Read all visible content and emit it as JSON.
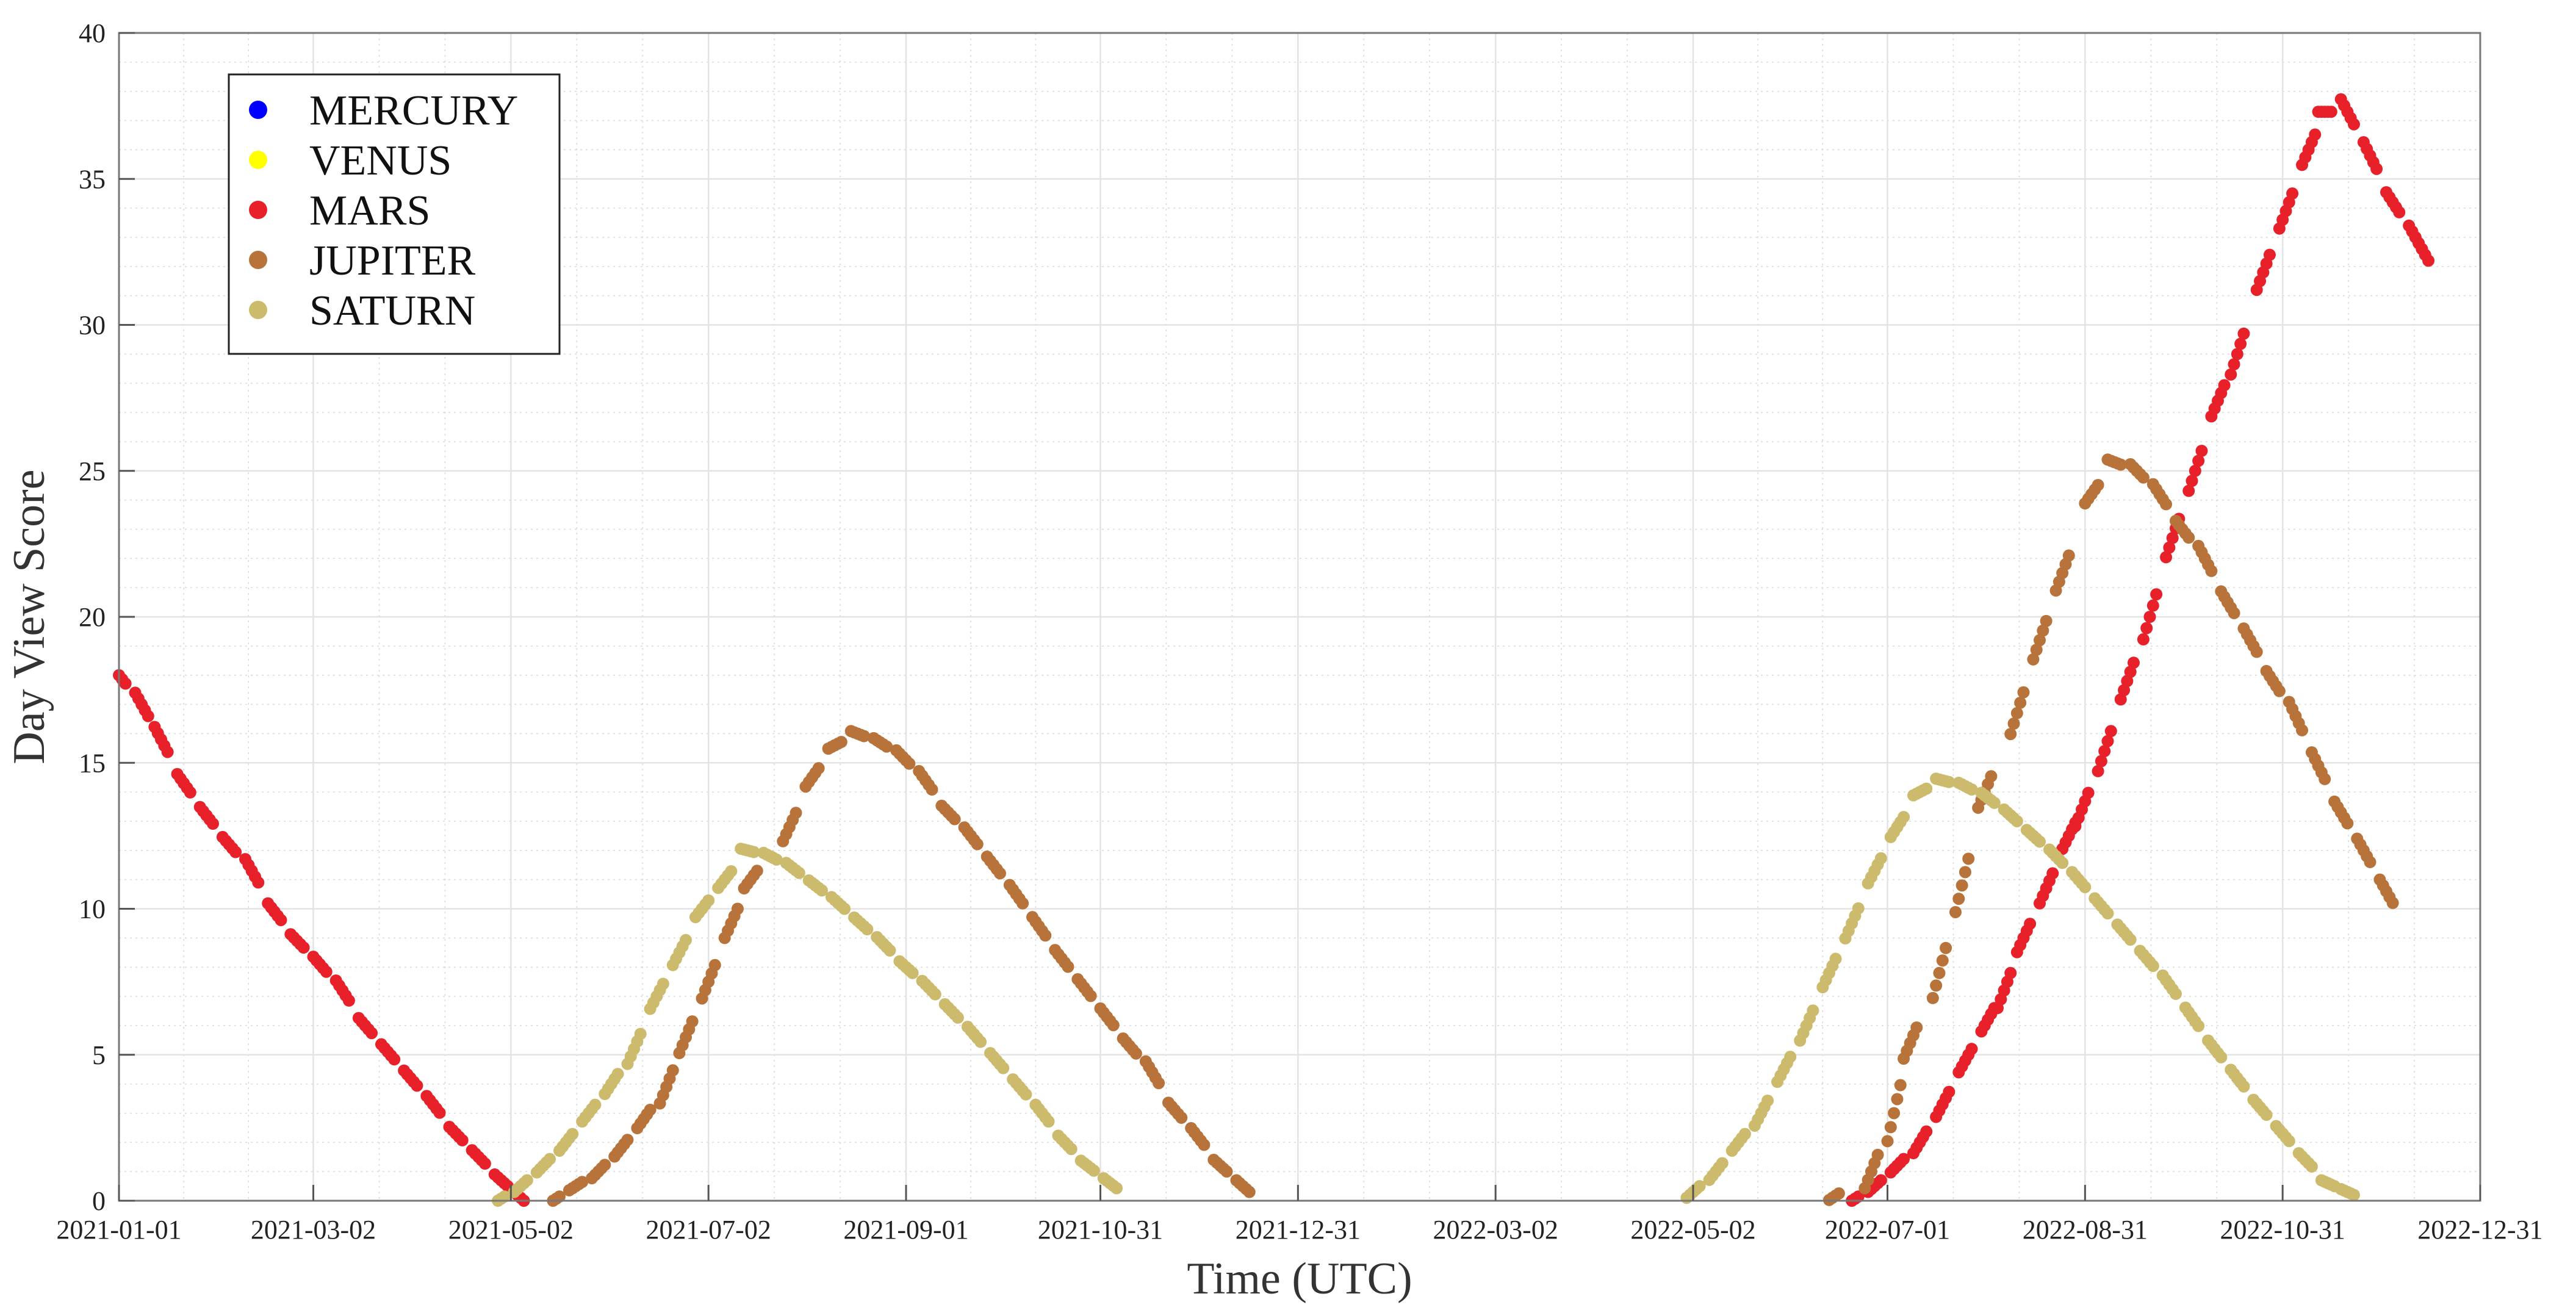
{
  "chart_data": {
    "type": "scatter",
    "title": "",
    "xlabel": "Time (UTC)",
    "ylabel": "Day View Score",
    "x_type": "date",
    "xlim": [
      "2021-01-01",
      "2022-12-31"
    ],
    "ylim": [
      0,
      40
    ],
    "x_ticks": [
      "2021-01-01",
      "2021-03-02",
      "2021-05-02",
      "2021-07-02",
      "2021-09-01",
      "2021-10-31",
      "2021-12-31",
      "2022-03-02",
      "2022-05-02",
      "2022-07-01",
      "2022-08-31",
      "2022-10-31",
      "2022-12-31"
    ],
    "y_ticks": [
      0,
      5,
      10,
      15,
      20,
      25,
      30,
      35,
      40
    ],
    "grid": true,
    "minor_grid": true,
    "legend_position": "top-left",
    "series": [
      {
        "name": "MERCURY",
        "color": "#0000ff",
        "points": []
      },
      {
        "name": "VENUS",
        "color": "#ffff00",
        "points": []
      },
      {
        "name": "MARS",
        "color": "#e8202a",
        "points": [
          [
            "2021-01-01",
            18.0
          ],
          [
            "2021-01-08",
            17.0
          ],
          [
            "2021-01-14",
            15.8
          ],
          [
            "2021-01-21",
            14.3
          ],
          [
            "2021-01-28",
            13.2
          ],
          [
            "2021-02-04",
            12.2
          ],
          [
            "2021-02-11",
            11.3
          ],
          [
            "2021-02-18",
            9.9
          ],
          [
            "2021-02-25",
            8.9
          ],
          [
            "2021-03-04",
            8.1
          ],
          [
            "2021-03-11",
            7.2
          ],
          [
            "2021-03-18",
            6.0
          ],
          [
            "2021-03-25",
            5.1
          ],
          [
            "2021-04-01",
            4.2
          ],
          [
            "2021-04-08",
            3.3
          ],
          [
            "2021-04-15",
            2.3
          ],
          [
            "2021-04-22",
            1.5
          ],
          [
            "2021-04-29",
            0.7
          ],
          [
            "2021-05-05",
            0.1
          ],
          [
            "2022-06-20",
            0.0
          ],
          [
            "2022-06-27",
            0.5
          ],
          [
            "2022-07-04",
            1.2
          ],
          [
            "2022-07-11",
            2.0
          ],
          [
            "2022-07-18",
            3.3
          ],
          [
            "2022-07-25",
            4.8
          ],
          [
            "2022-08-01",
            6.2
          ],
          [
            "2022-08-06",
            7.2
          ],
          [
            "2022-08-12",
            9.0
          ],
          [
            "2022-08-19",
            10.7
          ],
          [
            "2022-08-26",
            12.5
          ],
          [
            "2022-08-30",
            13.4
          ],
          [
            "2022-09-06",
            15.4
          ],
          [
            "2022-09-13",
            17.8
          ],
          [
            "2022-09-20",
            20.0
          ],
          [
            "2022-09-27",
            22.7
          ],
          [
            "2022-10-04",
            25.0
          ],
          [
            "2022-10-11",
            27.4
          ],
          [
            "2022-10-17",
            29.0
          ],
          [
            "2022-10-25",
            31.8
          ],
          [
            "2022-11-01",
            33.9
          ],
          [
            "2022-11-08",
            36.0
          ],
          [
            "2022-11-13",
            37.3
          ],
          [
            "2022-11-20",
            37.3
          ],
          [
            "2022-11-27",
            35.8
          ],
          [
            "2022-12-04",
            34.2
          ],
          [
            "2022-12-11",
            33.0
          ],
          [
            "2022-12-13",
            32.6
          ]
        ]
      },
      {
        "name": "JUPITER",
        "color": "#b8733a",
        "points": [
          [
            "2021-05-15",
            0.0
          ],
          [
            "2021-05-22",
            0.5
          ],
          [
            "2021-05-29",
            1.0
          ],
          [
            "2021-06-05",
            1.8
          ],
          [
            "2021-06-12",
            2.8
          ],
          [
            "2021-06-19",
            3.9
          ],
          [
            "2021-06-25",
            5.6
          ],
          [
            "2021-07-02",
            7.5
          ],
          [
            "2021-07-09",
            9.5
          ],
          [
            "2021-07-15",
            11.0
          ],
          [
            "2021-07-27",
            12.8
          ],
          [
            "2021-08-03",
            14.5
          ],
          [
            "2021-08-10",
            15.6
          ],
          [
            "2021-08-17",
            16.0
          ],
          [
            "2021-08-24",
            15.7
          ],
          [
            "2021-08-31",
            15.2
          ],
          [
            "2021-09-07",
            14.4
          ],
          [
            "2021-09-14",
            13.3
          ],
          [
            "2021-09-21",
            12.5
          ],
          [
            "2021-09-28",
            11.5
          ],
          [
            "2021-10-05",
            10.5
          ],
          [
            "2021-10-12",
            9.4
          ],
          [
            "2021-10-19",
            8.3
          ],
          [
            "2021-10-26",
            7.3
          ],
          [
            "2021-11-02",
            6.3
          ],
          [
            "2021-11-09",
            5.3
          ],
          [
            "2021-11-16",
            4.4
          ],
          [
            "2021-11-23",
            3.1
          ],
          [
            "2021-11-30",
            2.2
          ],
          [
            "2021-12-07",
            1.2
          ],
          [
            "2021-12-14",
            0.5
          ],
          [
            "2022-06-14",
            0.1
          ],
          [
            "2022-06-26",
            1.0
          ],
          [
            "2022-07-03",
            3.0
          ],
          [
            "2022-07-08",
            5.4
          ],
          [
            "2022-07-17",
            7.8
          ],
          [
            "2022-07-24",
            10.8
          ],
          [
            "2022-07-31",
            14.0
          ],
          [
            "2022-08-10",
            16.7
          ],
          [
            "2022-08-17",
            19.2
          ],
          [
            "2022-08-24",
            21.5
          ],
          [
            "2022-09-02",
            24.2
          ],
          [
            "2022-09-09",
            25.3
          ],
          [
            "2022-09-16",
            25.0
          ],
          [
            "2022-09-23",
            24.2
          ],
          [
            "2022-09-30",
            23.0
          ],
          [
            "2022-10-07",
            22.0
          ],
          [
            "2022-10-14",
            20.5
          ],
          [
            "2022-10-21",
            19.2
          ],
          [
            "2022-10-28",
            17.8
          ],
          [
            "2022-11-04",
            16.6
          ],
          [
            "2022-11-11",
            14.9
          ],
          [
            "2022-11-18",
            13.3
          ],
          [
            "2022-11-25",
            12.0
          ],
          [
            "2022-12-02",
            10.6
          ]
        ]
      },
      {
        "name": "SATURN",
        "color": "#cdbb6d",
        "points": [
          [
            "2021-04-28",
            0.0
          ],
          [
            "2021-05-05",
            0.5
          ],
          [
            "2021-05-12",
            1.2
          ],
          [
            "2021-05-19",
            2.0
          ],
          [
            "2021-05-26",
            3.0
          ],
          [
            "2021-06-02",
            4.0
          ],
          [
            "2021-06-09",
            5.2
          ],
          [
            "2021-06-16",
            7.0
          ],
          [
            "2021-06-23",
            8.5
          ],
          [
            "2021-06-30",
            10.0
          ],
          [
            "2021-07-07",
            11.0
          ],
          [
            "2021-07-14",
            12.0
          ],
          [
            "2021-07-21",
            11.8
          ],
          [
            "2021-07-28",
            11.4
          ],
          [
            "2021-08-04",
            10.8
          ],
          [
            "2021-08-11",
            10.2
          ],
          [
            "2021-08-18",
            9.5
          ],
          [
            "2021-08-25",
            8.8
          ],
          [
            "2021-09-01",
            8.0
          ],
          [
            "2021-09-08",
            7.3
          ],
          [
            "2021-09-15",
            6.5
          ],
          [
            "2021-09-22",
            5.7
          ],
          [
            "2021-09-29",
            4.8
          ],
          [
            "2021-10-06",
            3.9
          ],
          [
            "2021-10-13",
            3.0
          ],
          [
            "2021-10-20",
            2.0
          ],
          [
            "2021-10-27",
            1.2
          ],
          [
            "2021-11-03",
            0.6
          ],
          [
            "2022-05-02",
            0.3
          ],
          [
            "2022-05-09",
            1.0
          ],
          [
            "2022-05-16",
            2.0
          ],
          [
            "2022-05-23",
            3.0
          ],
          [
            "2022-05-30",
            4.5
          ],
          [
            "2022-06-06",
            6.0
          ],
          [
            "2022-06-13",
            7.8
          ],
          [
            "2022-06-20",
            9.5
          ],
          [
            "2022-06-27",
            11.3
          ],
          [
            "2022-07-04",
            12.8
          ],
          [
            "2022-07-11",
            14.0
          ],
          [
            "2022-07-18",
            14.4
          ],
          [
            "2022-07-25",
            14.2
          ],
          [
            "2022-08-01",
            13.8
          ],
          [
            "2022-08-08",
            13.2
          ],
          [
            "2022-08-15",
            12.5
          ],
          [
            "2022-08-22",
            11.8
          ],
          [
            "2022-08-29",
            11.0
          ],
          [
            "2022-09-05",
            10.1
          ],
          [
            "2022-09-12",
            9.2
          ],
          [
            "2022-09-19",
            8.3
          ],
          [
            "2022-09-26",
            7.4
          ],
          [
            "2022-10-03",
            6.3
          ],
          [
            "2022-10-10",
            5.2
          ],
          [
            "2022-10-17",
            4.2
          ],
          [
            "2022-10-24",
            3.2
          ],
          [
            "2022-10-31",
            2.3
          ],
          [
            "2022-11-07",
            1.4
          ],
          [
            "2022-11-14",
            0.6
          ],
          [
            "2022-11-20",
            0.3
          ]
        ]
      }
    ]
  }
}
